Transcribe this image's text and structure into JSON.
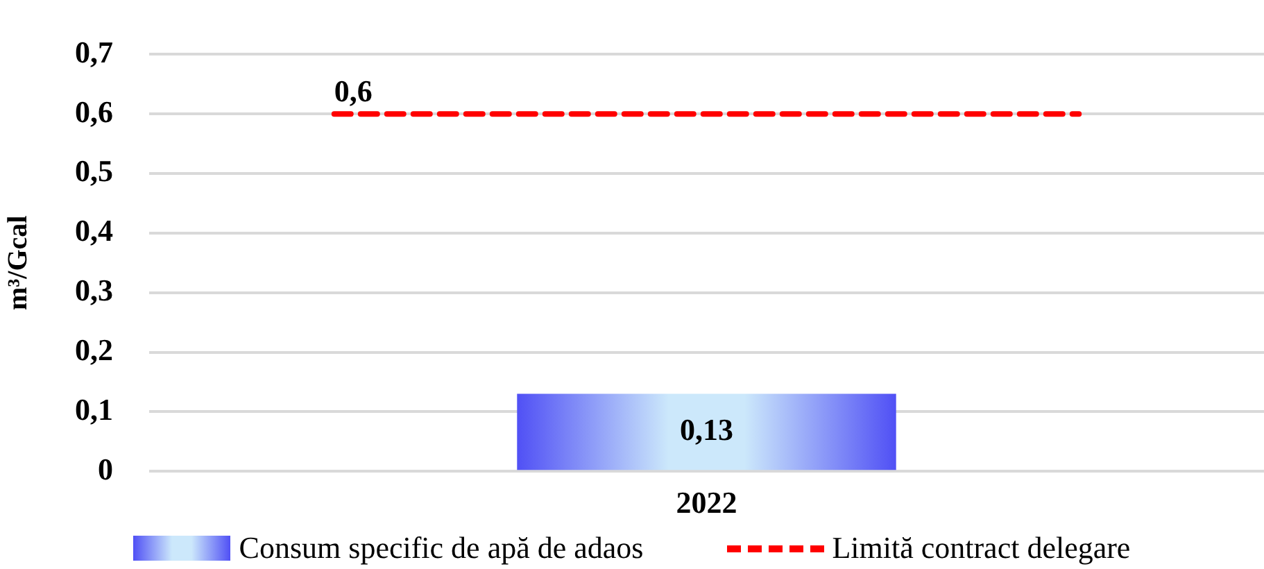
{
  "chart_data": {
    "type": "bar",
    "ylabel": "m³/Gcal",
    "categories": [
      "2022"
    ],
    "series": [
      {
        "name": "Consum specific de apă de adaos",
        "color": "#5050f5",
        "values": [
          0.13
        ],
        "value_labels": [
          "0,13"
        ]
      }
    ],
    "ref_lines": [
      {
        "axis": "y",
        "value": 0.6,
        "label": "Limită contract delegare",
        "color": "#ff0000",
        "line_style": "dashed"
      }
    ],
    "annotations": [
      {
        "text": "0,6",
        "y": 0.6
      }
    ],
    "ylim": [
      0,
      0.7
    ],
    "yticks": [
      0,
      {
        "value": 0.1,
        "label": "0,1"
      },
      {
        "value": 0.2,
        "label": "0,2"
      },
      {
        "value": 0.3,
        "label": "0,3"
      },
      {
        "value": 0.4,
        "label": "0,4"
      },
      {
        "value": 0.5,
        "label": "0,5"
      },
      {
        "value": 0.6,
        "label": "0,6"
      },
      {
        "value": 0.7,
        "label": "0,7"
      }
    ],
    "grid": "y",
    "legend": "bottom"
  }
}
